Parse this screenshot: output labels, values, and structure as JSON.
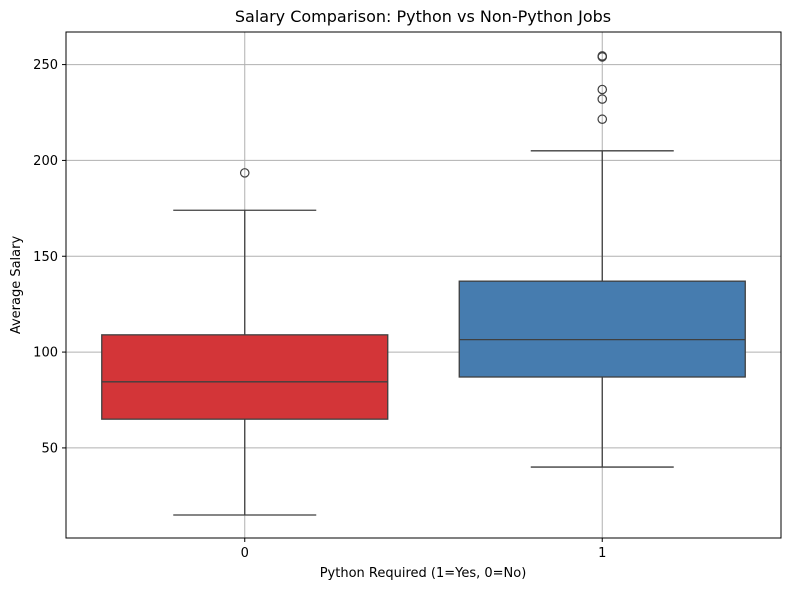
{
  "chart_data": {
    "type": "box",
    "title": "Salary Comparison: Python vs Non-Python Jobs",
    "xlabel": "Python Required (1=Yes, 0=No)",
    "ylabel": "Average Salary",
    "categories": [
      "0",
      "1"
    ],
    "ylim": [
      3,
      267
    ],
    "yticks": [
      50,
      100,
      150,
      200,
      250
    ],
    "grid": true,
    "boxes": [
      {
        "category": "0",
        "color": "#d33538",
        "whisker_low": 15,
        "q1": 65,
        "median": 84.5,
        "q3": 109,
        "whisker_high": 174,
        "outliers": [
          193.5
        ]
      },
      {
        "category": "1",
        "color": "#467caf",
        "whisker_low": 40,
        "q1": 87,
        "median": 106.5,
        "q3": 137,
        "whisker_high": 205,
        "outliers": [
          221.5,
          232,
          237,
          254,
          254.5
        ]
      }
    ]
  }
}
